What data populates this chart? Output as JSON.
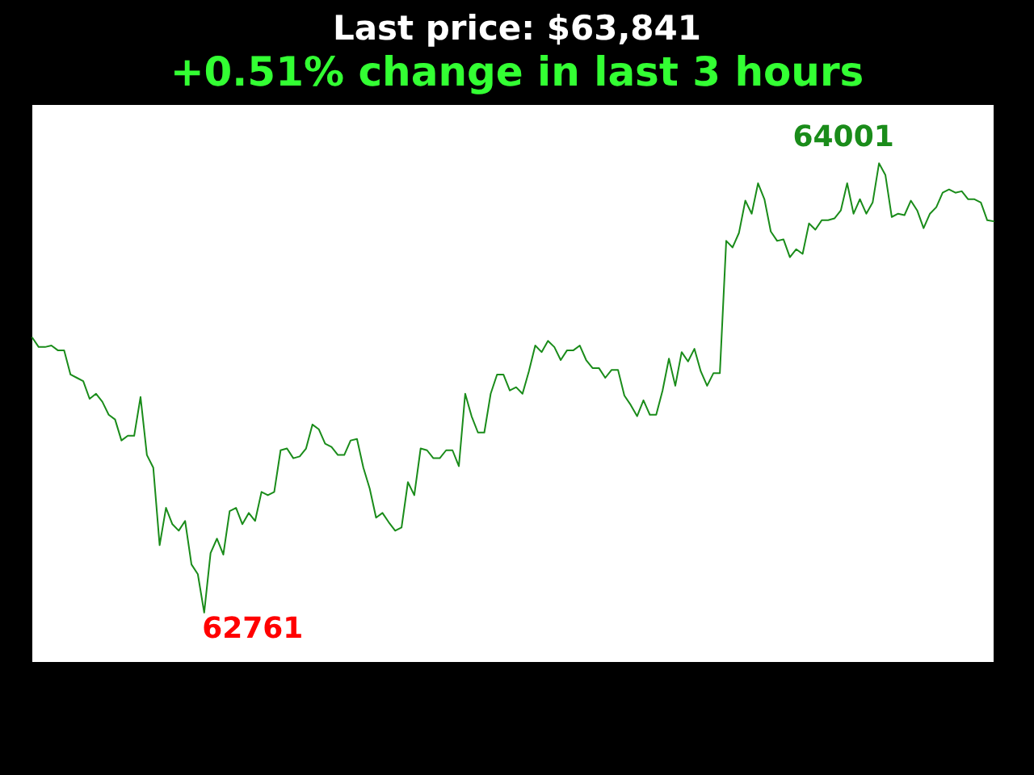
{
  "chart_data": {
    "type": "line",
    "title": "Last price: $63,841",
    "subtitle": "+0.51% change in last 3 hours",
    "categories": [
      null,
      null,
      null,
      null,
      null,
      null,
      null,
      null,
      null,
      null,
      null,
      null,
      null,
      null,
      null,
      null,
      null,
      null,
      null,
      null,
      null,
      null,
      null,
      null,
      null,
      null,
      null,
      null,
      null,
      null,
      null,
      null,
      null,
      null,
      null,
      null,
      null,
      null,
      null,
      null,
      null,
      null,
      null,
      null,
      null,
      null,
      null,
      null,
      null,
      null,
      null,
      null,
      null,
      null,
      null,
      null,
      null,
      null,
      null,
      null,
      null,
      null,
      null,
      null,
      null,
      null,
      null,
      null,
      null,
      null,
      null,
      null,
      null,
      null,
      null,
      null,
      null,
      null,
      null,
      null,
      null,
      null,
      null,
      null,
      null,
      null,
      null,
      null,
      null,
      null,
      null,
      null,
      null,
      null,
      null,
      null,
      null,
      null,
      null,
      null,
      null,
      null,
      null,
      null,
      null,
      null,
      null,
      null,
      null,
      null,
      null,
      null,
      null,
      null,
      null,
      null,
      null,
      null,
      null,
      null,
      null,
      null,
      null,
      null,
      null,
      null,
      null,
      null,
      null,
      null,
      null,
      null,
      null,
      null,
      null,
      null,
      null,
      null,
      null,
      null,
      null,
      null,
      null,
      null,
      null,
      null,
      null,
      null,
      null,
      null,
      null,
      null
    ],
    "marker": "none",
    "line_style": "solid",
    "series": [
      {
        "color": "#1a8c1a",
        "values": [
          63520,
          63494,
          63494,
          63498,
          63485,
          63485,
          63418,
          63409,
          63400,
          63351,
          63365,
          63343,
          63307,
          63294,
          63236,
          63249,
          63249,
          63356,
          63196,
          63161,
          62947,
          63050,
          63005,
          62987,
          63014,
          62894,
          62867,
          62761,
          62925,
          62965,
          62921,
          63041,
          63050,
          63005,
          63036,
          63014,
          63094,
          63085,
          63094,
          63209,
          63214,
          63187,
          63192,
          63214,
          63280,
          63267,
          63227,
          63218,
          63196,
          63196,
          63236,
          63240,
          63161,
          63103,
          63023,
          63036,
          63010,
          62987,
          62996,
          63121,
          63085,
          63214,
          63209,
          63187,
          63187,
          63209,
          63209,
          63165,
          63365,
          63303,
          63258,
          63258,
          63365,
          63418,
          63418,
          63374,
          63383,
          63365,
          63427,
          63498,
          63480,
          63511,
          63494,
          63458,
          63485,
          63485,
          63498,
          63458,
          63436,
          63436,
          63409,
          63431,
          63431,
          63360,
          63334,
          63303,
          63347,
          63307,
          63307,
          63374,
          63462,
          63387,
          63480,
          63454,
          63489,
          63427,
          63387,
          63422,
          63422,
          63787,
          63769,
          63809,
          63898,
          63862,
          63946,
          63902,
          63813,
          63787,
          63791,
          63742,
          63764,
          63751,
          63835,
          63818,
          63844,
          63844,
          63849,
          63871,
          63946,
          63862,
          63902,
          63862,
          63893,
          64001,
          63969,
          63853,
          63862,
          63858,
          63898,
          63871,
          63822,
          63862,
          63880,
          63920,
          63929,
          63920,
          63924,
          63902,
          63902,
          63893,
          63844,
          63841
        ],
        "value_labels": [
          null,
          null,
          null,
          null,
          null,
          null,
          null,
          null,
          null,
          null,
          null,
          null,
          null,
          null,
          null,
          null,
          null,
          null,
          null,
          null,
          null,
          null,
          null,
          null,
          null,
          null,
          null,
          "62761",
          null,
          null,
          null,
          null,
          null,
          null,
          null,
          null,
          null,
          null,
          null,
          null,
          null,
          null,
          null,
          null,
          null,
          null,
          null,
          null,
          null,
          null,
          null,
          null,
          null,
          null,
          null,
          null,
          null,
          null,
          null,
          null,
          null,
          null,
          null,
          null,
          null,
          null,
          null,
          null,
          null,
          null,
          null,
          null,
          null,
          null,
          null,
          null,
          null,
          null,
          null,
          null,
          null,
          null,
          null,
          null,
          null,
          null,
          null,
          null,
          null,
          null,
          null,
          null,
          null,
          null,
          null,
          null,
          null,
          null,
          null,
          null,
          null,
          null,
          null,
          null,
          null,
          null,
          null,
          null,
          null,
          null,
          null,
          null,
          null,
          null,
          null,
          null,
          null,
          null,
          null,
          null,
          null,
          null,
          null,
          null,
          null,
          null,
          null,
          null,
          null,
          null,
          null,
          null,
          null,
          "64001",
          null,
          null,
          null,
          null,
          null,
          null,
          null,
          null,
          null,
          null,
          null,
          null,
          null,
          null,
          null,
          null,
          null,
          null
        ]
      }
    ]
  }
}
